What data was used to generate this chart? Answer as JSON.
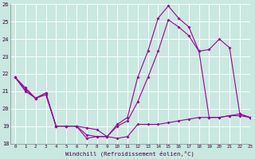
{
  "xlabel": "Windchill (Refroidissement éolien,°C)",
  "background_color": "#c8e8e0",
  "grid_color": "#ffffff",
  "line_color": "#990099",
  "hours": [
    0,
    1,
    2,
    3,
    4,
    5,
    6,
    7,
    8,
    9,
    10,
    11,
    12,
    13,
    14,
    15,
    16,
    17,
    18,
    19,
    20,
    21,
    22,
    23
  ],
  "line1": [
    21.8,
    21.2,
    20.6,
    20.8,
    19.0,
    19.0,
    19.0,
    18.9,
    18.8,
    18.4,
    18.3,
    18.4,
    19.1,
    19.1,
    19.1,
    19.2,
    19.3,
    19.4,
    19.5,
    19.5,
    19.5,
    19.6,
    19.6,
    19.5
  ],
  "line2": [
    21.8,
    21.1,
    20.6,
    20.9,
    19.0,
    19.0,
    19.0,
    18.5,
    18.4,
    18.4,
    19.0,
    19.3,
    20.4,
    21.8,
    23.3,
    25.1,
    24.7,
    24.2,
    23.3,
    23.4,
    24.0,
    23.5,
    19.7,
    19.5
  ],
  "line3": [
    21.8,
    21.0,
    20.6,
    20.9,
    19.0,
    19.0,
    19.0,
    18.3,
    18.4,
    18.4,
    19.1,
    19.5,
    21.8,
    23.3,
    25.2,
    25.9,
    25.2,
    24.7,
    23.3,
    19.5,
    19.5,
    19.6,
    19.7,
    19.5
  ],
  "ylim": [
    18,
    26
  ],
  "xlim": [
    -0.5,
    23
  ],
  "yticks": [
    18,
    19,
    20,
    21,
    22,
    23,
    24,
    25,
    26
  ],
  "xticks": [
    0,
    1,
    2,
    3,
    4,
    5,
    6,
    7,
    8,
    9,
    10,
    11,
    12,
    13,
    14,
    15,
    16,
    17,
    18,
    19,
    20,
    21,
    22,
    23
  ]
}
